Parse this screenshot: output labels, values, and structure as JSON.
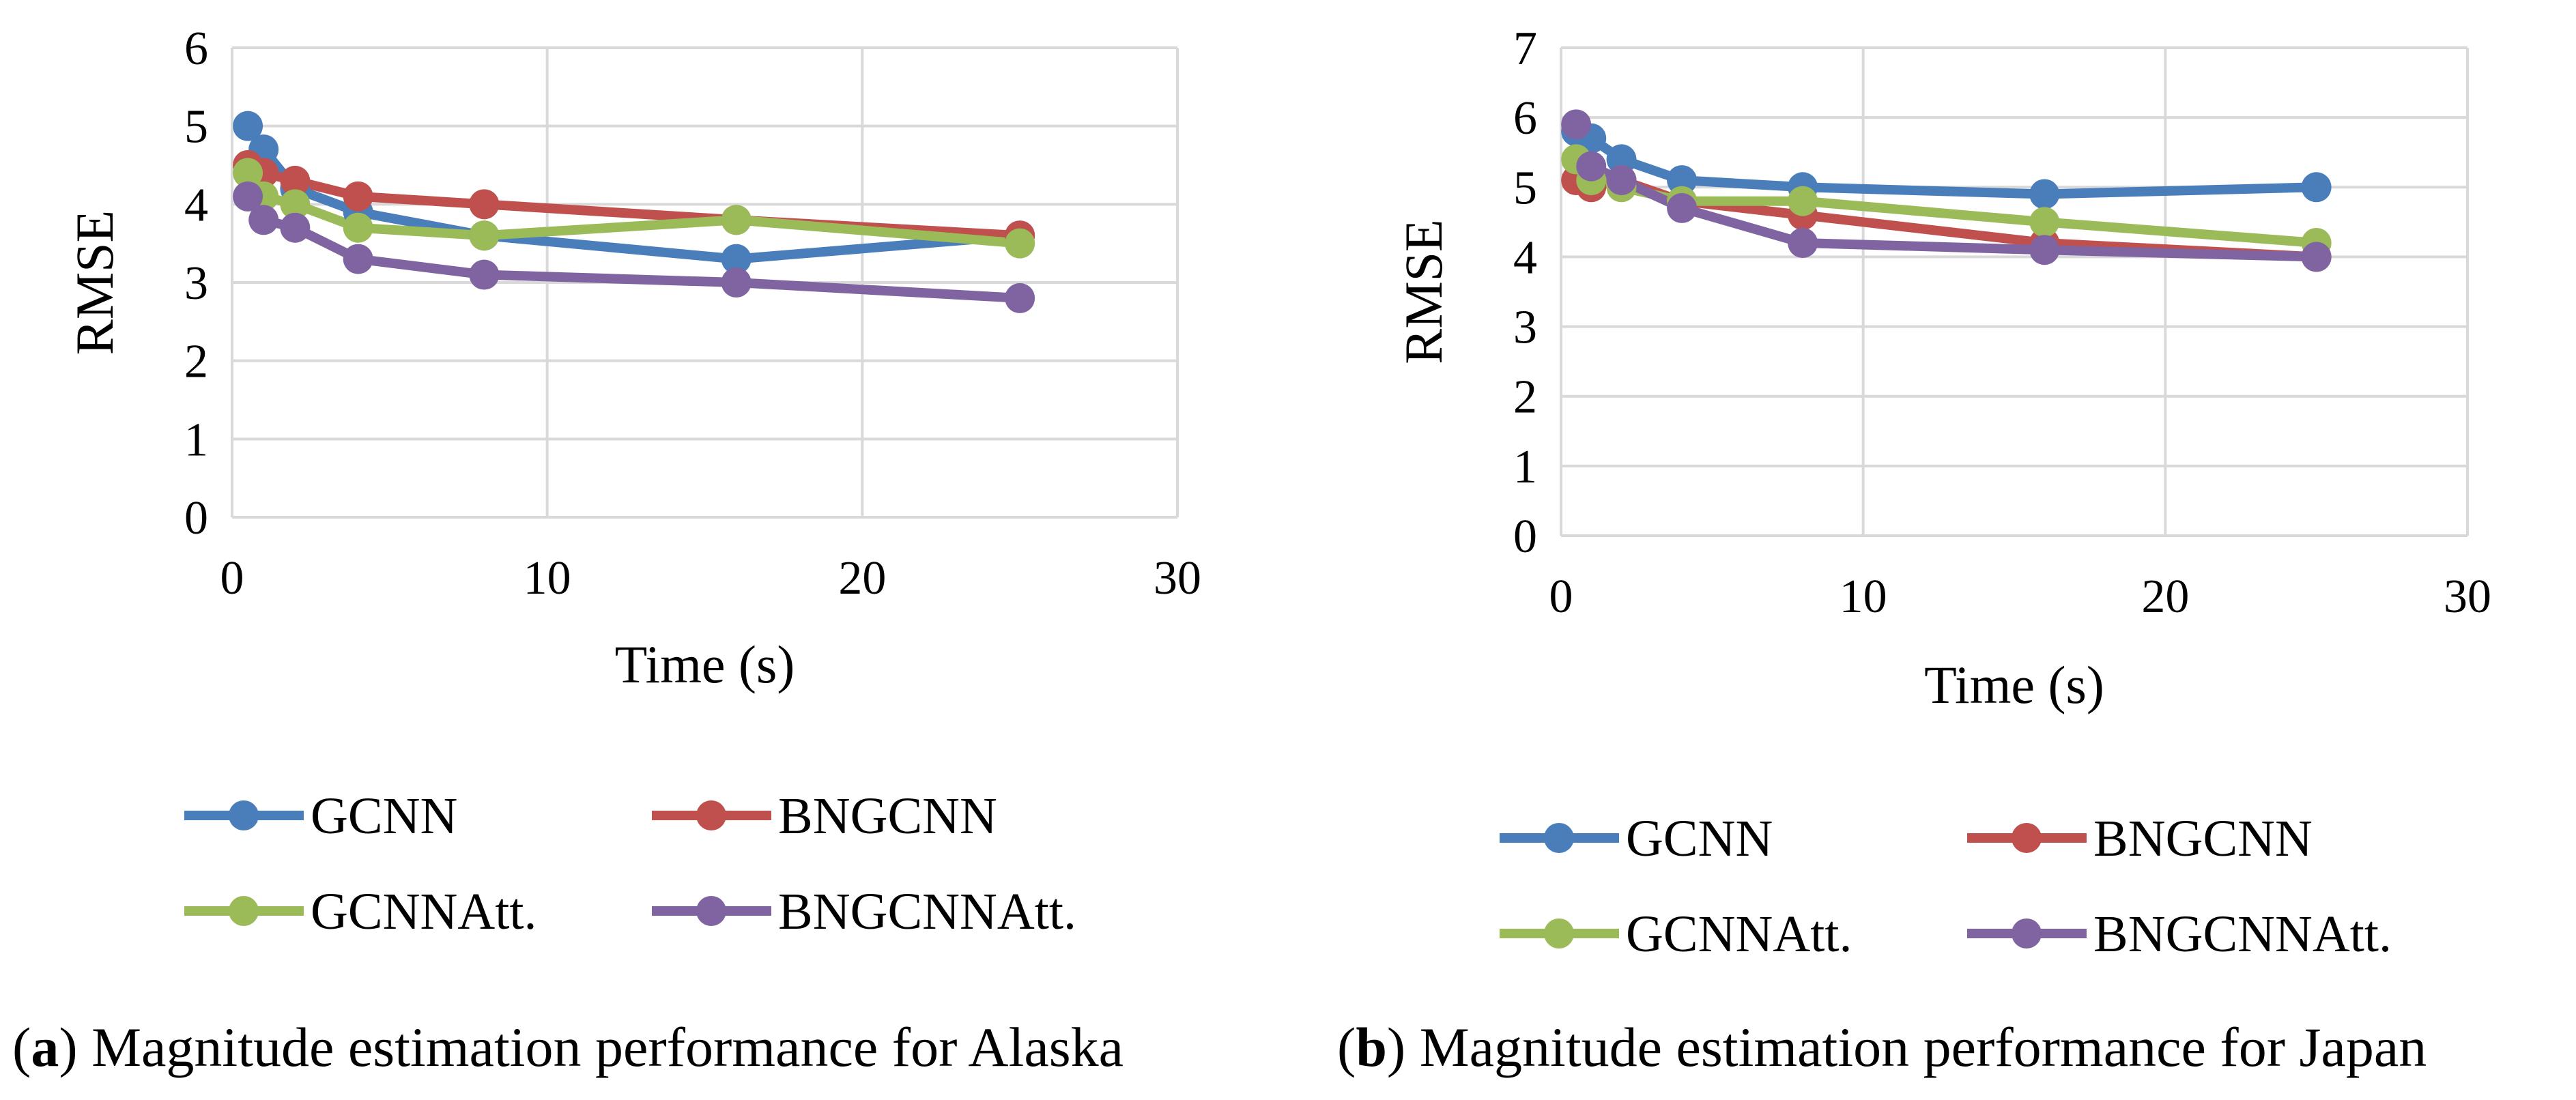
{
  "chart_data": [
    {
      "type": "line",
      "panel": "a",
      "caption_letter": "a",
      "caption_text": "Magnitude estimation performance for Alaska",
      "xlabel": "Time (s)",
      "ylabel": "RMSE",
      "xlim": [
        0,
        30
      ],
      "ylim": [
        0,
        6
      ],
      "xticks": [
        0,
        10,
        20,
        30
      ],
      "yticks": [
        0,
        1,
        2,
        3,
        4,
        5,
        6
      ],
      "grid": true,
      "legend_position": "bottom",
      "x": [
        0.5,
        1,
        2,
        4,
        8,
        16,
        25
      ],
      "series": [
        {
          "name": "GCNN",
          "color": "#4a7ebb",
          "values": [
            5.0,
            4.7,
            4.2,
            3.9,
            3.6,
            3.3,
            3.6
          ]
        },
        {
          "name": "BNGCNN",
          "color": "#c0504d",
          "values": [
            4.5,
            4.4,
            4.3,
            4.1,
            4.0,
            3.8,
            3.6
          ]
        },
        {
          "name": "GCNNAtt.",
          "color": "#9bbb59",
          "values": [
            4.4,
            4.1,
            4.0,
            3.7,
            3.6,
            3.8,
            3.5
          ]
        },
        {
          "name": "BNGCNNAtt.",
          "color": "#8064a2",
          "values": [
            4.1,
            3.8,
            3.7,
            3.3,
            3.1,
            3.0,
            2.8
          ]
        }
      ]
    },
    {
      "type": "line",
      "panel": "b",
      "caption_letter": "b",
      "caption_text": "Magnitude estimation performance for Japan",
      "xlabel": "Time (s)",
      "ylabel": "RMSE",
      "xlim": [
        0,
        30
      ],
      "ylim": [
        0,
        7
      ],
      "xticks": [
        0,
        10,
        20,
        30
      ],
      "yticks": [
        0,
        1,
        2,
        3,
        4,
        5,
        6,
        7
      ],
      "grid": true,
      "legend_position": "bottom",
      "x": [
        0.5,
        1,
        2,
        4,
        8,
        16,
        25
      ],
      "series": [
        {
          "name": "GCNN",
          "color": "#4a7ebb",
          "values": [
            5.8,
            5.7,
            5.4,
            5.1,
            5.0,
            4.9,
            5.0
          ]
        },
        {
          "name": "BNGCNN",
          "color": "#c0504d",
          "values": [
            5.1,
            5.0,
            5.1,
            4.8,
            4.6,
            4.2,
            4.0
          ]
        },
        {
          "name": "GCNNAtt.",
          "color": "#9bbb59",
          "values": [
            5.4,
            5.1,
            5.0,
            4.8,
            4.8,
            4.5,
            4.2
          ]
        },
        {
          "name": "BNGCNNAtt.",
          "color": "#8064a2",
          "values": [
            5.9,
            5.3,
            5.1,
            4.7,
            4.2,
            4.1,
            4.0
          ]
        }
      ]
    }
  ]
}
